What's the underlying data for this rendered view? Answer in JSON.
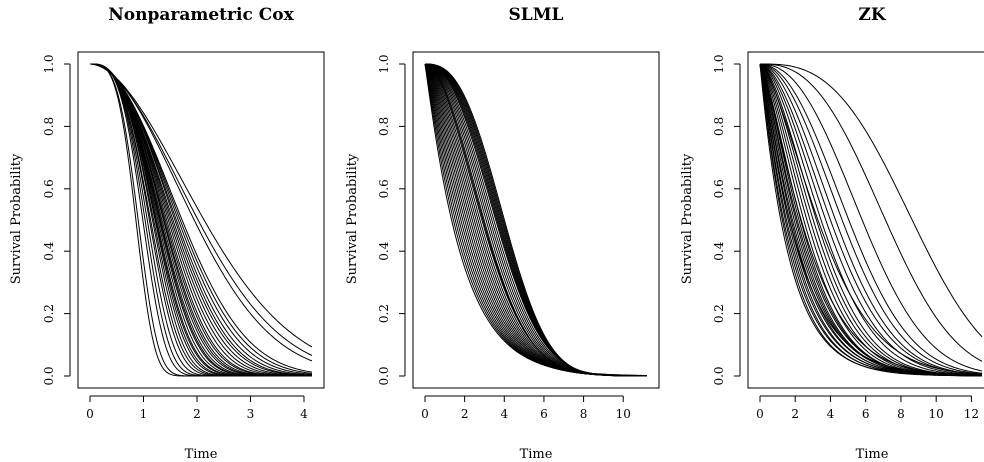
{
  "chart_data": [
    {
      "type": "line",
      "title": "Nonparametric Cox",
      "xlabel": "Time",
      "ylabel": "Survival Probability",
      "xlim": [
        0,
        4.15
      ],
      "ylim": [
        0,
        1
      ],
      "xticks": [
        0,
        1,
        2,
        3,
        4
      ],
      "yticks": [
        0.0,
        0.2,
        0.4,
        0.6,
        0.8,
        1.0
      ],
      "ytick_labels": [
        "0.0",
        "0.2",
        "0.4",
        "0.6",
        "0.8",
        "1.0"
      ],
      "grid": false,
      "curve_family": "weibull",
      "series": [
        {
          "values": [
            {
              "scale": 1.1,
              "shape": 3.4
            }
          ]
        },
        {
          "values": [
            {
              "scale": 1.15,
              "shape": 3.3
            }
          ]
        },
        {
          "values": [
            {
              "scale": 1.2,
              "shape": 3.2
            }
          ]
        },
        {
          "values": [
            {
              "scale": 1.25,
              "shape": 3.1
            }
          ]
        },
        {
          "values": [
            {
              "scale": 1.28,
              "shape": 3.0
            }
          ]
        },
        {
          "values": [
            {
              "scale": 1.32,
              "shape": 3.0
            }
          ]
        },
        {
          "values": [
            {
              "scale": 1.35,
              "shape": 2.9
            }
          ]
        },
        {
          "values": [
            {
              "scale": 1.38,
              "shape": 2.9
            }
          ]
        },
        {
          "values": [
            {
              "scale": 1.4,
              "shape": 2.8
            }
          ]
        },
        {
          "values": [
            {
              "scale": 1.42,
              "shape": 2.8
            }
          ]
        },
        {
          "values": [
            {
              "scale": 1.45,
              "shape": 2.75
            }
          ]
        },
        {
          "values": [
            {
              "scale": 1.48,
              "shape": 2.7
            }
          ]
        },
        {
          "values": [
            {
              "scale": 1.5,
              "shape": 2.7
            }
          ]
        },
        {
          "values": [
            {
              "scale": 1.52,
              "shape": 2.65
            }
          ]
        },
        {
          "values": [
            {
              "scale": 1.55,
              "shape": 2.6
            }
          ]
        },
        {
          "values": [
            {
              "scale": 1.58,
              "shape": 2.6
            }
          ]
        },
        {
          "values": [
            {
              "scale": 1.6,
              "shape": 2.55
            }
          ]
        },
        {
          "values": [
            {
              "scale": 1.63,
              "shape": 2.5
            }
          ]
        },
        {
          "values": [
            {
              "scale": 1.66,
              "shape": 2.5
            }
          ]
        },
        {
          "values": [
            {
              "scale": 1.7,
              "shape": 2.45
            }
          ]
        },
        {
          "values": [
            {
              "scale": 1.74,
              "shape": 2.4
            }
          ]
        },
        {
          "values": [
            {
              "scale": 1.78,
              "shape": 2.35
            }
          ]
        },
        {
          "values": [
            {
              "scale": 1.82,
              "shape": 2.3
            }
          ]
        },
        {
          "values": [
            {
              "scale": 1.86,
              "shape": 2.3
            }
          ]
        },
        {
          "values": [
            {
              "scale": 1.9,
              "shape": 2.25
            }
          ]
        },
        {
          "values": [
            {
              "scale": 1.95,
              "shape": 2.2
            }
          ]
        },
        {
          "values": [
            {
              "scale": 2.0,
              "shape": 2.15
            }
          ]
        },
        {
          "values": [
            {
              "scale": 2.05,
              "shape": 2.1
            }
          ]
        },
        {
          "values": [
            {
              "scale": 2.35,
              "shape": 1.95
            }
          ]
        },
        {
          "values": [
            {
              "scale": 2.45,
              "shape": 1.9
            }
          ]
        },
        {
          "values": [
            {
              "scale": 2.6,
              "shape": 1.85
            }
          ]
        },
        {
          "values": [
            {
              "scale": 0.95,
              "shape": 3.6
            }
          ]
        },
        {
          "values": [
            {
              "scale": 1.0,
              "shape": 3.5
            }
          ]
        }
      ]
    },
    {
      "type": "line",
      "title": "SLML",
      "xlabel": "Time",
      "ylabel": "Survival Probability",
      "xlim": [
        0,
        11.2
      ],
      "ylim": [
        0,
        1
      ],
      "xticks": [
        0,
        2,
        4,
        6,
        8,
        10
      ],
      "yticks": [
        0.0,
        0.2,
        0.4,
        0.6,
        0.8,
        1.0
      ],
      "ytick_labels": [
        "0.0",
        "0.2",
        "0.4",
        "0.6",
        "0.8",
        "1.0"
      ],
      "grid": false,
      "curve_family": "weibull",
      "series": [
        {
          "values": [
            {
              "scale": 1.9,
              "shape": 1.05
            }
          ]
        },
        {
          "values": [
            {
              "scale": 2.0,
              "shape": 1.1
            }
          ]
        },
        {
          "values": [
            {
              "scale": 2.1,
              "shape": 1.15
            }
          ]
        },
        {
          "values": [
            {
              "scale": 2.2,
              "shape": 1.2
            }
          ]
        },
        {
          "values": [
            {
              "scale": 2.3,
              "shape": 1.25
            }
          ]
        },
        {
          "values": [
            {
              "scale": 2.4,
              "shape": 1.3
            }
          ]
        },
        {
          "values": [
            {
              "scale": 2.5,
              "shape": 1.35
            }
          ]
        },
        {
          "values": [
            {
              "scale": 2.6,
              "shape": 1.4
            }
          ]
        },
        {
          "values": [
            {
              "scale": 2.7,
              "shape": 1.45
            }
          ]
        },
        {
          "values": [
            {
              "scale": 2.8,
              "shape": 1.5
            }
          ]
        },
        {
          "values": [
            {
              "scale": 2.9,
              "shape": 1.55
            }
          ]
        },
        {
          "values": [
            {
              "scale": 3.0,
              "shape": 1.6
            }
          ]
        },
        {
          "values": [
            {
              "scale": 3.1,
              "shape": 1.65
            }
          ]
        },
        {
          "values": [
            {
              "scale": 3.2,
              "shape": 1.7
            }
          ]
        },
        {
          "values": [
            {
              "scale": 3.3,
              "shape": 1.75
            }
          ]
        },
        {
          "values": [
            {
              "scale": 3.4,
              "shape": 1.8
            }
          ]
        },
        {
          "values": [
            {
              "scale": 3.5,
              "shape": 1.85
            }
          ]
        },
        {
          "values": [
            {
              "scale": 3.55,
              "shape": 1.9
            }
          ]
        },
        {
          "values": [
            {
              "scale": 3.6,
              "shape": 1.95
            }
          ]
        },
        {
          "values": [
            {
              "scale": 3.7,
              "shape": 2.0
            }
          ]
        },
        {
          "values": [
            {
              "scale": 3.8,
              "shape": 2.05
            }
          ]
        },
        {
          "values": [
            {
              "scale": 3.9,
              "shape": 2.1
            }
          ]
        },
        {
          "values": [
            {
              "scale": 4.0,
              "shape": 2.15
            }
          ]
        },
        {
          "values": [
            {
              "scale": 4.1,
              "shape": 2.2
            }
          ]
        },
        {
          "values": [
            {
              "scale": 4.2,
              "shape": 2.25
            }
          ]
        },
        {
          "values": [
            {
              "scale": 4.25,
              "shape": 2.3
            }
          ]
        },
        {
          "values": [
            {
              "scale": 4.3,
              "shape": 2.35
            }
          ]
        },
        {
          "values": [
            {
              "scale": 4.35,
              "shape": 2.4
            }
          ]
        },
        {
          "values": [
            {
              "scale": 4.4,
              "shape": 2.45
            }
          ]
        },
        {
          "values": [
            {
              "scale": 4.45,
              "shape": 2.5
            }
          ]
        },
        {
          "values": [
            {
              "scale": 4.5,
              "shape": 2.55
            }
          ]
        },
        {
          "values": [
            {
              "scale": 4.55,
              "shape": 2.6
            }
          ]
        },
        {
          "values": [
            {
              "scale": 4.6,
              "shape": 2.65
            }
          ]
        }
      ]
    },
    {
      "type": "line",
      "title": "ZK",
      "xlabel": "Time",
      "ylabel": "Survival Probability",
      "xlim": [
        0,
        12.6
      ],
      "ylim": [
        0,
        1
      ],
      "xticks": [
        0,
        2,
        4,
        6,
        8,
        10,
        12
      ],
      "yticks": [
        0.0,
        0.2,
        0.4,
        0.6,
        0.8,
        1.0
      ],
      "ytick_labels": [
        "0.0",
        "0.2",
        "0.4",
        "0.6",
        "0.8",
        "1.0"
      ],
      "grid": false,
      "curve_family": "weibull",
      "series": [
        {
          "values": [
            {
              "scale": 1.8,
              "shape": 1.05
            }
          ]
        },
        {
          "values": [
            {
              "scale": 1.9,
              "shape": 1.05
            }
          ]
        },
        {
          "values": [
            {
              "scale": 2.0,
              "shape": 1.1
            }
          ]
        },
        {
          "values": [
            {
              "scale": 2.1,
              "shape": 1.1
            }
          ]
        },
        {
          "values": [
            {
              "scale": 2.2,
              "shape": 1.15
            }
          ]
        },
        {
          "values": [
            {
              "scale": 2.3,
              "shape": 1.15
            }
          ]
        },
        {
          "values": [
            {
              "scale": 2.4,
              "shape": 1.2
            }
          ]
        },
        {
          "values": [
            {
              "scale": 2.5,
              "shape": 1.2
            }
          ]
        },
        {
          "values": [
            {
              "scale": 2.6,
              "shape": 1.25
            }
          ]
        },
        {
          "values": [
            {
              "scale": 2.7,
              "shape": 1.3
            }
          ]
        },
        {
          "values": [
            {
              "scale": 2.8,
              "shape": 1.3
            }
          ]
        },
        {
          "values": [
            {
              "scale": 2.9,
              "shape": 1.35
            }
          ]
        },
        {
          "values": [
            {
              "scale": 3.0,
              "shape": 1.4
            }
          ]
        },
        {
          "values": [
            {
              "scale": 3.2,
              "shape": 1.45
            }
          ]
        },
        {
          "values": [
            {
              "scale": 3.4,
              "shape": 1.5
            }
          ]
        },
        {
          "values": [
            {
              "scale": 3.6,
              "shape": 1.55
            }
          ]
        },
        {
          "values": [
            {
              "scale": 3.8,
              "shape": 1.6
            }
          ]
        },
        {
          "values": [
            {
              "scale": 4.0,
              "shape": 1.65
            }
          ]
        },
        {
          "values": [
            {
              "scale": 4.3,
              "shape": 1.7
            }
          ]
        },
        {
          "values": [
            {
              "scale": 4.6,
              "shape": 1.75
            }
          ]
        },
        {
          "values": [
            {
              "scale": 4.9,
              "shape": 1.8
            }
          ]
        },
        {
          "values": [
            {
              "scale": 5.2,
              "shape": 1.9
            }
          ]
        },
        {
          "values": [
            {
              "scale": 5.6,
              "shape": 2.0
            }
          ]
        },
        {
          "values": [
            {
              "scale": 6.0,
              "shape": 2.1
            }
          ]
        },
        {
          "values": [
            {
              "scale": 6.8,
              "shape": 2.3
            }
          ]
        },
        {
          "values": [
            {
              "scale": 8.2,
              "shape": 2.6
            }
          ]
        },
        {
          "values": [
            {
              "scale": 9.8,
              "shape": 2.9
            }
          ]
        },
        {
          "values": [
            {
              "scale": 1.7,
              "shape": 1.0
            }
          ]
        },
        {
          "values": [
            {
              "scale": 2.35,
              "shape": 1.1
            }
          ]
        },
        {
          "values": [
            {
              "scale": 3.1,
              "shape": 1.3
            }
          ]
        },
        {
          "values": [
            {
              "scale": 4.2,
              "shape": 1.5
            }
          ]
        }
      ]
    }
  ]
}
